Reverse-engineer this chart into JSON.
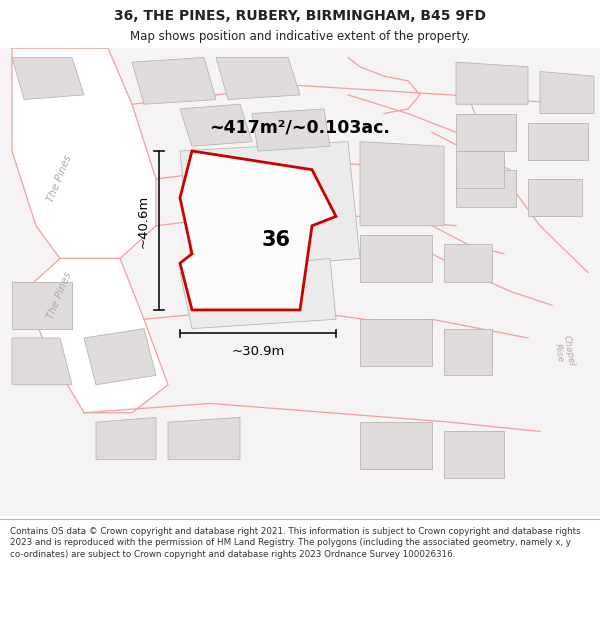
{
  "title": "36, THE PINES, RUBERY, BIRMINGHAM, B45 9FD",
  "subtitle": "Map shows position and indicative extent of the property.",
  "area_text": "~417m²/~0.103ac.",
  "width_text": "~30.9m",
  "height_text": "~40.6m",
  "plot_number": "36",
  "footer": "Contains OS data © Crown copyright and database right 2021. This information is subject to Crown copyright and database rights 2023 and is reproduced with the permission of HM Land Registry. The polygons (including the associated geometry, namely x, y co-ordinates) are subject to Crown copyright and database rights 2023 Ordnance Survey 100026316.",
  "bg_color": "#f5f3f3",
  "plot_color": "#cc0000",
  "road_line_color": "#f0a0a0",
  "building_fill": "#e0dcdc",
  "building_edge": "#b8b4b4",
  "road_fill": "#ffffff",
  "dim_color": "#111111",
  "label_color": "#b0a8a8",
  "title_color": "#222222",
  "footer_bg": "#ffffff",
  "map_border": "#cccccc"
}
